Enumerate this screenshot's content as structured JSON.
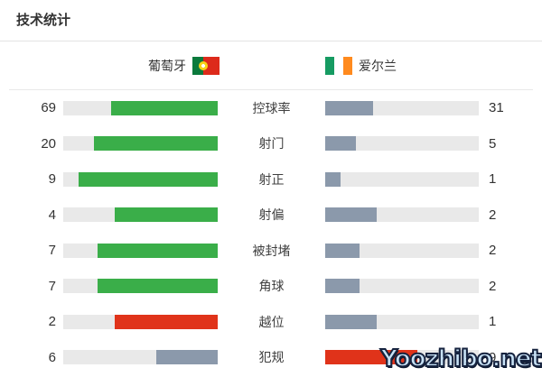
{
  "title": "技术统计",
  "teams": {
    "home": {
      "name": "葡萄牙",
      "flag": "portugal-flag"
    },
    "away": {
      "name": "爱尔兰",
      "flag": "ireland-flag"
    }
  },
  "colors": {
    "green": "#3aae49",
    "red": "#e0331a",
    "gray": "#8b99ab",
    "track": "#e9e9e9"
  },
  "stats": [
    {
      "label": "控球率",
      "home": 69,
      "away": 31,
      "home_color": "green",
      "away_color": "gray"
    },
    {
      "label": "射门",
      "home": 20,
      "away": 5,
      "home_color": "green",
      "away_color": "gray"
    },
    {
      "label": "射正",
      "home": 9,
      "away": 1,
      "home_color": "green",
      "away_color": "gray"
    },
    {
      "label": "射偏",
      "home": 4,
      "away": 2,
      "home_color": "green",
      "away_color": "gray"
    },
    {
      "label": "被封堵",
      "home": 7,
      "away": 2,
      "home_color": "green",
      "away_color": "gray"
    },
    {
      "label": "角球",
      "home": 7,
      "away": 2,
      "home_color": "green",
      "away_color": "gray"
    },
    {
      "label": "越位",
      "home": 2,
      "away": 1,
      "home_color": "red",
      "away_color": "gray"
    },
    {
      "label": "犯规",
      "home": 6,
      "away": 9,
      "home_color": "gray",
      "away_color": "red"
    }
  ],
  "chart_data": {
    "type": "bar",
    "title": "技术统计",
    "categories": [
      "控球率",
      "射门",
      "射正",
      "射偏",
      "被封堵",
      "角球",
      "越位",
      "犯规"
    ],
    "series": [
      {
        "name": "葡萄牙",
        "values": [
          69,
          20,
          9,
          4,
          7,
          7,
          2,
          6
        ]
      },
      {
        "name": "爱尔兰",
        "values": [
          31,
          5,
          1,
          2,
          2,
          2,
          1,
          9
        ]
      }
    ],
    "layout": "paired horizontal bars; each side's fill ratio = value / (home + away); home fills right-anchored, away fills left-anchored",
    "bar_colors": {
      "home": [
        "green",
        "green",
        "green",
        "green",
        "green",
        "green",
        "red",
        "gray"
      ],
      "away": [
        "gray",
        "gray",
        "gray",
        "gray",
        "gray",
        "gray",
        "gray",
        "red"
      ]
    }
  },
  "watermark": "Yoozhibo.net"
}
